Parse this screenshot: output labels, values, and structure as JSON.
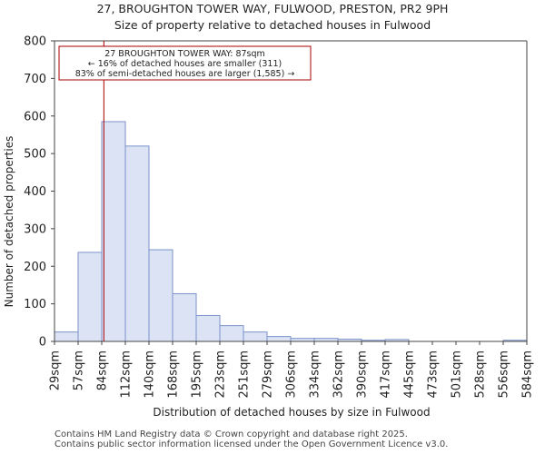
{
  "chart_data": {
    "type": "histogram",
    "title": "27, BROUGHTON TOWER WAY, FULWOOD, PRESTON, PR2 9PH",
    "subtitle": "Size of property relative to detached houses in Fulwood",
    "xlabel": "Distribution of detached houses by size in Fulwood",
    "ylabel": "Number of detached properties",
    "ylim": [
      0,
      800
    ],
    "yticks": [
      0,
      100,
      200,
      300,
      400,
      500,
      600,
      700,
      800
    ],
    "categories": [
      "29sqm",
      "57sqm",
      "84sqm",
      "112sqm",
      "140sqm",
      "168sqm",
      "195sqm",
      "223sqm",
      "251sqm",
      "279sqm",
      "306sqm",
      "334sqm",
      "362sqm",
      "390sqm",
      "417sqm",
      "445sqm",
      "473sqm",
      "501sqm",
      "528sqm",
      "556sqm",
      "584sqm"
    ],
    "values": [
      25,
      237,
      585,
      520,
      244,
      127,
      69,
      42,
      25,
      13,
      8,
      8,
      6,
      3,
      5,
      0,
      0,
      0,
      0,
      3
    ],
    "bar_fill": "#dbe3f5",
    "bar_edge": "#7b93c9",
    "marker": {
      "value_sqm": 87,
      "color": "#aa0000",
      "lines": [
        "27 BROUGHTON TOWER WAY: 87sqm",
        "← 16% of detached houses are smaller (311)",
        "83% of semi-detached houses are larger (1,585) →"
      ]
    },
    "grid": false
  },
  "footer": {
    "line1": "Contains HM Land Registry data © Crown copyright and database right 2025.",
    "line2": "Contains public sector information licensed under the Open Government Licence v3.0."
  }
}
